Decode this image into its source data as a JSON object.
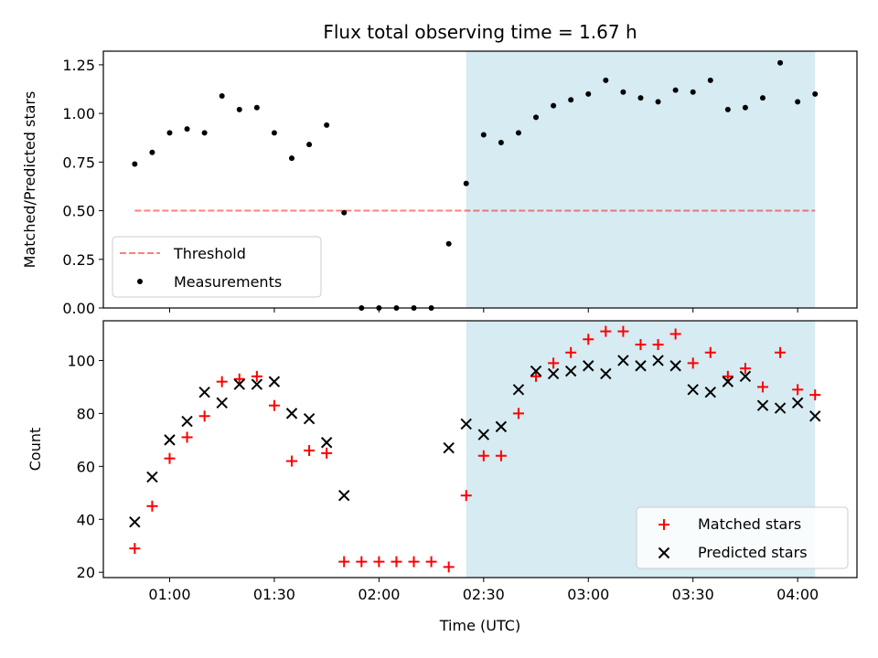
{
  "title": "Flux total observing time = 1.67 h",
  "colors": {
    "shade": "#add8e6",
    "threshold": "#ff0000",
    "matched": "#ff0000",
    "predicted": "#000000",
    "measurement": "#000000"
  },
  "chart_data": [
    {
      "type": "scatter",
      "ylabel": "Matched/Predicted stars",
      "xlim": [
        "00:41",
        "04:17"
      ],
      "ylim": [
        0,
        1.32
      ],
      "yticks": [
        "0.00",
        "0.25",
        "0.50",
        "0.75",
        "1.00",
        "1.25"
      ],
      "shaded_region": {
        "x0": "02:25",
        "x1": "04:05",
        "color": "#add8e6"
      },
      "threshold": {
        "name": "Threshold",
        "value": 0.5,
        "x0": "00:50",
        "x1": "04:05",
        "style": "dashed"
      },
      "legend": {
        "location": "lower-left",
        "entries": [
          "Threshold",
          "Measurements"
        ]
      },
      "series": [
        {
          "name": "Measurements",
          "marker": "dot",
          "points": [
            [
              "00:50",
              0.74
            ],
            [
              "00:55",
              0.8
            ],
            [
              "01:00",
              0.9
            ],
            [
              "01:05",
              0.92
            ],
            [
              "01:10",
              0.9
            ],
            [
              "01:15",
              1.09
            ],
            [
              "01:20",
              1.02
            ],
            [
              "01:25",
              1.03
            ],
            [
              "01:30",
              0.9
            ],
            [
              "01:35",
              0.77
            ],
            [
              "01:40",
              0.84
            ],
            [
              "01:45",
              0.94
            ],
            [
              "01:50",
              0.49
            ],
            [
              "01:55",
              0.0
            ],
            [
              "02:00",
              0.0
            ],
            [
              "02:05",
              0.0
            ],
            [
              "02:10",
              0.0
            ],
            [
              "02:15",
              0.0
            ],
            [
              "02:20",
              0.33
            ],
            [
              "02:25",
              0.64
            ],
            [
              "02:30",
              0.89
            ],
            [
              "02:35",
              0.85
            ],
            [
              "02:40",
              0.9
            ],
            [
              "02:45",
              0.98
            ],
            [
              "02:50",
              1.04
            ],
            [
              "02:55",
              1.07
            ],
            [
              "03:00",
              1.1
            ],
            [
              "03:05",
              1.17
            ],
            [
              "03:10",
              1.11
            ],
            [
              "03:15",
              1.08
            ],
            [
              "03:20",
              1.06
            ],
            [
              "03:25",
              1.12
            ],
            [
              "03:30",
              1.11
            ],
            [
              "03:35",
              1.17
            ],
            [
              "03:40",
              1.02
            ],
            [
              "03:45",
              1.03
            ],
            [
              "03:50",
              1.08
            ],
            [
              "03:55",
              1.26
            ],
            [
              "04:00",
              1.06
            ],
            [
              "04:05",
              1.1
            ]
          ]
        }
      ]
    },
    {
      "type": "scatter",
      "xlabel": "Time (UTC)",
      "ylabel": "Count",
      "xlim": [
        "00:41",
        "04:17"
      ],
      "ylim": [
        18,
        115
      ],
      "xticks": [
        "01:00",
        "01:30",
        "02:00",
        "02:30",
        "03:00",
        "03:30",
        "04:00"
      ],
      "yticks": [
        "20",
        "40",
        "60",
        "80",
        "100"
      ],
      "shaded_region": {
        "x0": "02:25",
        "x1": "04:05",
        "color": "#add8e6"
      },
      "legend": {
        "location": "lower-right",
        "entries": [
          "Matched stars",
          "Predicted stars"
        ]
      },
      "series": [
        {
          "name": "Matched stars",
          "marker": "plus",
          "points": [
            [
              "00:50",
              29
            ],
            [
              "00:55",
              45
            ],
            [
              "01:00",
              63
            ],
            [
              "01:05",
              71
            ],
            [
              "01:10",
              79
            ],
            [
              "01:15",
              92
            ],
            [
              "01:20",
              93
            ],
            [
              "01:25",
              94
            ],
            [
              "01:30",
              83
            ],
            [
              "01:35",
              62
            ],
            [
              "01:40",
              66
            ],
            [
              "01:45",
              65
            ],
            [
              "01:50",
              24
            ],
            [
              "01:55",
              24
            ],
            [
              "02:00",
              24
            ],
            [
              "02:05",
              24
            ],
            [
              "02:10",
              24
            ],
            [
              "02:15",
              24
            ],
            [
              "02:20",
              22
            ],
            [
              "02:25",
              49
            ],
            [
              "02:30",
              64
            ],
            [
              "02:35",
              64
            ],
            [
              "02:40",
              80
            ],
            [
              "02:45",
              94
            ],
            [
              "02:50",
              99
            ],
            [
              "02:55",
              103
            ],
            [
              "03:00",
              108
            ],
            [
              "03:05",
              111
            ],
            [
              "03:10",
              111
            ],
            [
              "03:15",
              106
            ],
            [
              "03:20",
              106
            ],
            [
              "03:25",
              110
            ],
            [
              "03:30",
              99
            ],
            [
              "03:35",
              103
            ],
            [
              "03:40",
              94
            ],
            [
              "03:45",
              97
            ],
            [
              "03:50",
              90
            ],
            [
              "03:55",
              103
            ],
            [
              "04:00",
              89
            ],
            [
              "04:05",
              87
            ]
          ]
        },
        {
          "name": "Predicted stars",
          "marker": "x",
          "points": [
            [
              "00:50",
              39
            ],
            [
              "00:55",
              56
            ],
            [
              "01:00",
              70
            ],
            [
              "01:05",
              77
            ],
            [
              "01:10",
              88
            ],
            [
              "01:15",
              84
            ],
            [
              "01:20",
              91
            ],
            [
              "01:25",
              91
            ],
            [
              "01:30",
              92
            ],
            [
              "01:35",
              80
            ],
            [
              "01:40",
              78
            ],
            [
              "01:45",
              69
            ],
            [
              "01:50",
              49
            ],
            [
              "02:20",
              67
            ],
            [
              "02:25",
              76
            ],
            [
              "02:30",
              72
            ],
            [
              "02:35",
              75
            ],
            [
              "02:40",
              89
            ],
            [
              "02:45",
              96
            ],
            [
              "02:50",
              95
            ],
            [
              "02:55",
              96
            ],
            [
              "03:00",
              98
            ],
            [
              "03:05",
              95
            ],
            [
              "03:10",
              100
            ],
            [
              "03:15",
              98
            ],
            [
              "03:20",
              100
            ],
            [
              "03:25",
              98
            ],
            [
              "03:30",
              89
            ],
            [
              "03:35",
              88
            ],
            [
              "03:40",
              92
            ],
            [
              "03:45",
              94
            ],
            [
              "03:50",
              83
            ],
            [
              "03:55",
              82
            ],
            [
              "04:00",
              84
            ],
            [
              "04:05",
              79
            ]
          ]
        }
      ]
    }
  ]
}
